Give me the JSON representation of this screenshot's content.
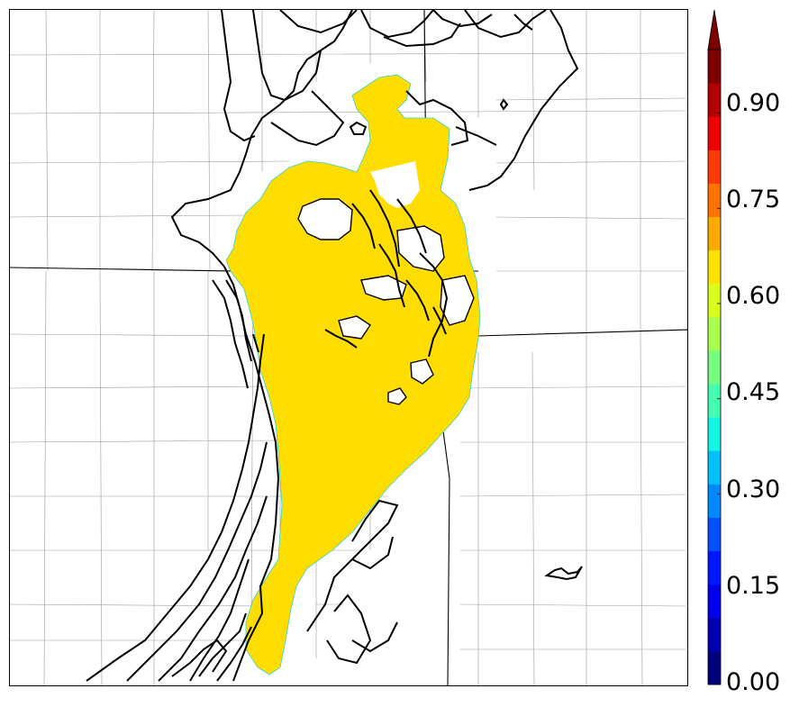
{
  "colorbar": {
    "tick_labels": [
      "0.00",
      "0.15",
      "0.30",
      "0.45",
      "0.60",
      "0.75",
      "0.90"
    ],
    "tick_values": [
      0.0,
      0.15,
      0.3,
      0.45,
      0.6,
      0.75,
      0.9
    ],
    "range": [
      0.0,
      1.0
    ],
    "extend": "max",
    "colors": [
      "#00007f",
      "#0000b2",
      "#0000ec",
      "#0018ff",
      "#0050ff",
      "#0088ff",
      "#00c0ff",
      "#12f4e4",
      "#44ffb2",
      "#76ff80",
      "#a8ff4e",
      "#daff1c",
      "#ffe200",
      "#ffaa00",
      "#ff7200",
      "#ff3a00",
      "#ec0300",
      "#b20000",
      "#800000"
    ],
    "extend_color": "#7f0000"
  },
  "map": {
    "shaded_value_color": "#ffdd00",
    "contour_color": "#000000",
    "background": "#ffffff"
  }
}
